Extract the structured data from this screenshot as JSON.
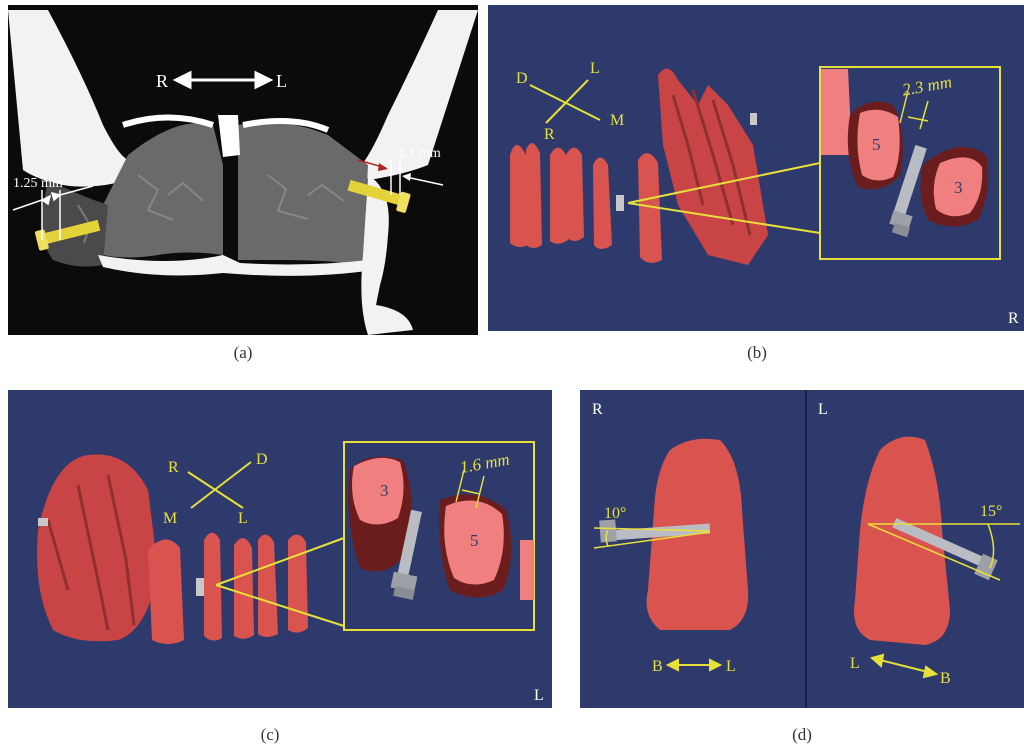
{
  "panels": {
    "a": {
      "caption": "(a)",
      "dir_r": "R",
      "dir_l": "L",
      "meas_left": "1.25 mm",
      "meas_right": "1.1 mm"
    },
    "b": {
      "caption": "(b)",
      "axis_d": "D",
      "axis_l": "L",
      "axis_r": "R",
      "axis_m": "M",
      "meas": "2.3 mm",
      "tooth_5": "5",
      "tooth_3": "3",
      "side": "R"
    },
    "c": {
      "caption": "(c)",
      "axis_r": "R",
      "axis_d": "D",
      "axis_m": "M",
      "axis_l": "L",
      "meas": "1.6 mm",
      "tooth_3": "3",
      "tooth_5": "5",
      "side": "L"
    },
    "d": {
      "caption": "(d)",
      "left_side": "R",
      "right_side": "L",
      "angle_left": "10°",
      "angle_right": "15°",
      "left_b": "B",
      "left_l": "L",
      "right_l": "L",
      "right_b": "B"
    }
  },
  "colors": {
    "navy": "#2e3a6b",
    "tooth": "#d9534f",
    "tooth_cut": "#f08080",
    "tooth_dark": "#6b1d1d",
    "annot": "#e8e03a",
    "screw_gold": "#e3d23a",
    "screw_steel": "#b9bcc2"
  }
}
